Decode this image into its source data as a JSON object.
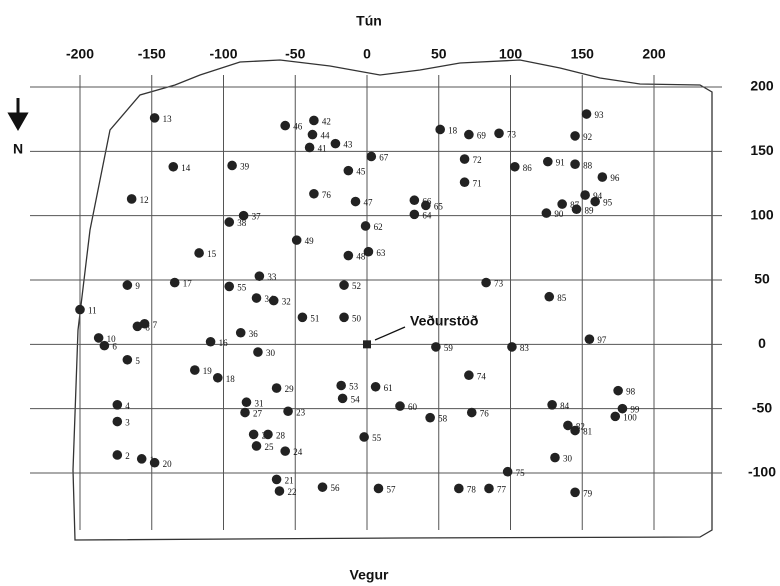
{
  "chart_data": {
    "type": "scatter",
    "title": "Tún",
    "xlabel": "Vegur",
    "north": "N",
    "annotation": {
      "text": "Veðurstöð",
      "x": 0,
      "y": 0
    },
    "xlim": [
      -200,
      200
    ],
    "ylim": [
      -100,
      200
    ],
    "xticks": [
      -200,
      -150,
      -100,
      -50,
      0,
      50,
      100,
      150,
      200
    ],
    "yticks": [
      -100,
      -50,
      0,
      50,
      100,
      150,
      200
    ],
    "grid": true,
    "color": "#222222",
    "point_labels": [
      "13",
      "14",
      "12",
      "39",
      "46",
      "42",
      "44",
      "41",
      "43",
      "45",
      "67",
      "18",
      "69",
      "73",
      "93",
      "92",
      "72",
      "71",
      "86",
      "91",
      "88",
      "96",
      "94",
      "87",
      "95",
      "90",
      "89",
      "76",
      "47",
      "66",
      "65",
      "64",
      "37",
      "38",
      "62",
      "63",
      "48",
      "49",
      "15",
      "33",
      "52",
      "73",
      "85",
      "9",
      "17",
      "55",
      "34",
      "32",
      "51",
      "50",
      "11",
      "8",
      "7",
      "36",
      "10",
      "6",
      "16",
      "59",
      "83",
      "97",
      "30",
      "5",
      "19",
      "18",
      "29",
      "53",
      "61",
      "54",
      "74",
      "98",
      "4",
      "31",
      "60",
      "84",
      "99",
      "27",
      "23",
      "58",
      "76",
      "100",
      "3",
      "82",
      "81",
      "26",
      "28",
      "55",
      "25",
      "24",
      "30",
      "2",
      "1",
      "20",
      "75",
      "21",
      "22",
      "56",
      "57",
      "78",
      "77",
      "79"
    ],
    "x": [
      -148,
      -135,
      -164,
      -94,
      -57,
      -37,
      -38,
      -40,
      -22,
      -13,
      3,
      51,
      71,
      92,
      153,
      145,
      68,
      68,
      103,
      126,
      145,
      164,
      152,
      136,
      159,
      125,
      146,
      -37,
      -8,
      33,
      41,
      33,
      -86,
      -96,
      -1,
      1,
      -13,
      -49,
      -117,
      -75,
      -16,
      83,
      127,
      -167,
      -134,
      -96,
      -77,
      -65,
      -45,
      -16,
      -200,
      -160,
      -155,
      -88,
      -187,
      -183,
      -109,
      48,
      101,
      155,
      -76,
      -167,
      -120,
      -104,
      -63,
      -18,
      6,
      -17,
      71,
      175,
      -174,
      -84,
      23,
      129,
      178,
      -85,
      -55,
      44,
      73,
      173,
      -174,
      140,
      145,
      -79,
      -69,
      -2,
      -77,
      -57,
      131,
      -174,
      -157,
      -148,
      98,
      -63,
      -61,
      -31,
      8,
      64,
      85,
      145
    ],
    "values": [
      176,
      138,
      113,
      139,
      170,
      174,
      163,
      153,
      156,
      135,
      146,
      167,
      163,
      164,
      179,
      162,
      144,
      126,
      138,
      142,
      140,
      130,
      116,
      109,
      111,
      102,
      105,
      117,
      111,
      112,
      108,
      101,
      100,
      95,
      92,
      72,
      69,
      81,
      71,
      53,
      46,
      48,
      37,
      46,
      48,
      45,
      36,
      34,
      21,
      21,
      27,
      14,
      16,
      9,
      5,
      -1,
      2,
      -2,
      -2,
      4,
      -6,
      -12,
      -20,
      -26,
      -34,
      -32,
      -33,
      -42,
      -24,
      -36,
      -47,
      -45,
      -48,
      -47,
      -50,
      -53,
      -52,
      -57,
      -53,
      -56,
      -60,
      -63,
      -67,
      -70,
      -70,
      -72,
      -79,
      -83,
      -88,
      -86,
      -89,
      -92,
      -99,
      -105,
      -114,
      -111,
      -112,
      -112,
      -112,
      -115
    ]
  }
}
